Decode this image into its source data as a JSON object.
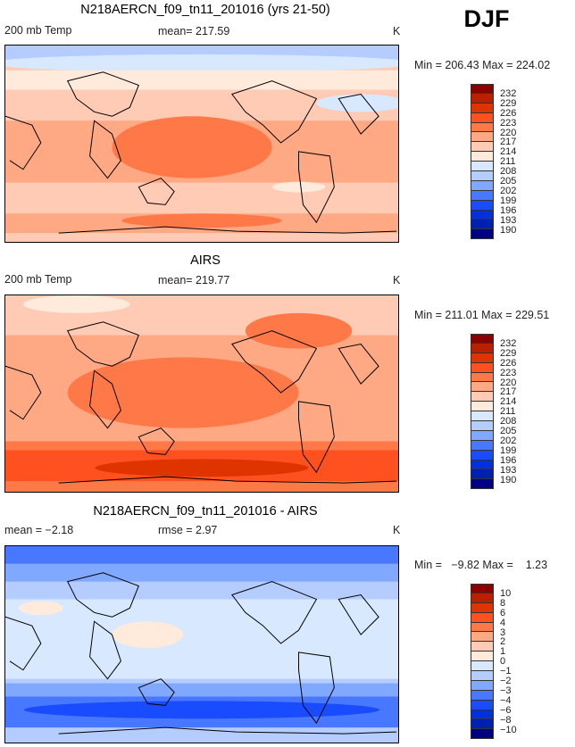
{
  "season": "DJF",
  "panels": [
    {
      "title": "N218AERCN_f09_tn11_201016 (yrs 21-50)",
      "left_label": "200 mb Temp",
      "center_label": "mean= 217.59",
      "units": "K",
      "minmax": "Min = 206.43 Max = 224.02",
      "colorbar_labels": [
        "232",
        "229",
        "226",
        "223",
        "220",
        "217",
        "214",
        "211",
        "208",
        "205",
        "202",
        "199",
        "196",
        "193",
        "190"
      ]
    },
    {
      "title": "AIRS",
      "left_label": "200 mb Temp",
      "center_label": "mean= 219.77",
      "units": "K",
      "minmax": "Min = 211.01 Max = 229.51",
      "colorbar_labels": [
        "232",
        "229",
        "226",
        "223",
        "220",
        "217",
        "214",
        "211",
        "208",
        "205",
        "202",
        "199",
        "196",
        "193",
        "190"
      ]
    },
    {
      "title": "N218AERCN_f09_tn11_201016 - AIRS",
      "left_label": "mean =  −2.18",
      "center_label": "rmse =    2.97",
      "units": "K",
      "minmax": "Min =   −9.82 Max =    1.23",
      "colorbar_labels": [
        "10",
        "8",
        "6",
        "4",
        "3",
        "2",
        "1",
        "0",
        "−1",
        "−2",
        "−3",
        "−4",
        "−6",
        "−8",
        "−10"
      ]
    }
  ],
  "colors": [
    "#8c0000",
    "#b82000",
    "#e03400",
    "#ff5020",
    "#ff7848",
    "#ffa884",
    "#ffcbb4",
    "#ffeadc",
    "#d8e8ff",
    "#b4ccff",
    "#80a8ff",
    "#4878ff",
    "#1a4cff",
    "#0030e0",
    "#0020b0",
    "#000080"
  ]
}
